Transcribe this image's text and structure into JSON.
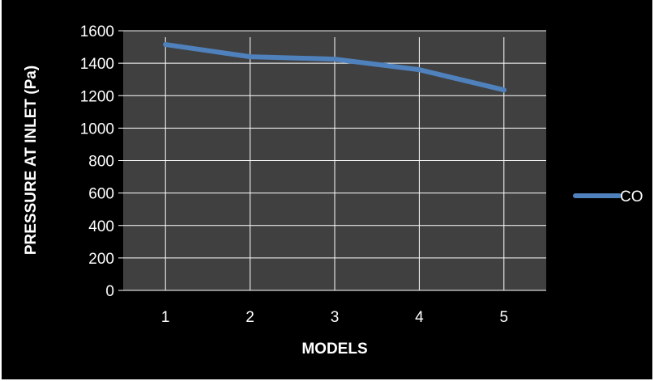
{
  "chart_data": {
    "type": "line",
    "title": "",
    "xlabel": "MODELS",
    "ylabel": "PRESSURE AT INLET (Pa)",
    "categories": [
      "1",
      "2",
      "3",
      "4",
      "5"
    ],
    "ylim": [
      0,
      1600
    ],
    "yticks": [
      "0",
      "200",
      "400",
      "600",
      "800",
      "1000",
      "1200",
      "1400",
      "1600"
    ],
    "grid": true,
    "legend_position": "right",
    "series": [
      {
        "name": "CO",
        "values": [
          1515,
          1440,
          1425,
          1360,
          1235
        ],
        "color": "#4f81bd"
      }
    ],
    "colors": {
      "plot_background": "#404040",
      "figure_background": "#000000",
      "gridline": "#ffffff",
      "text": "#ffffff"
    }
  }
}
